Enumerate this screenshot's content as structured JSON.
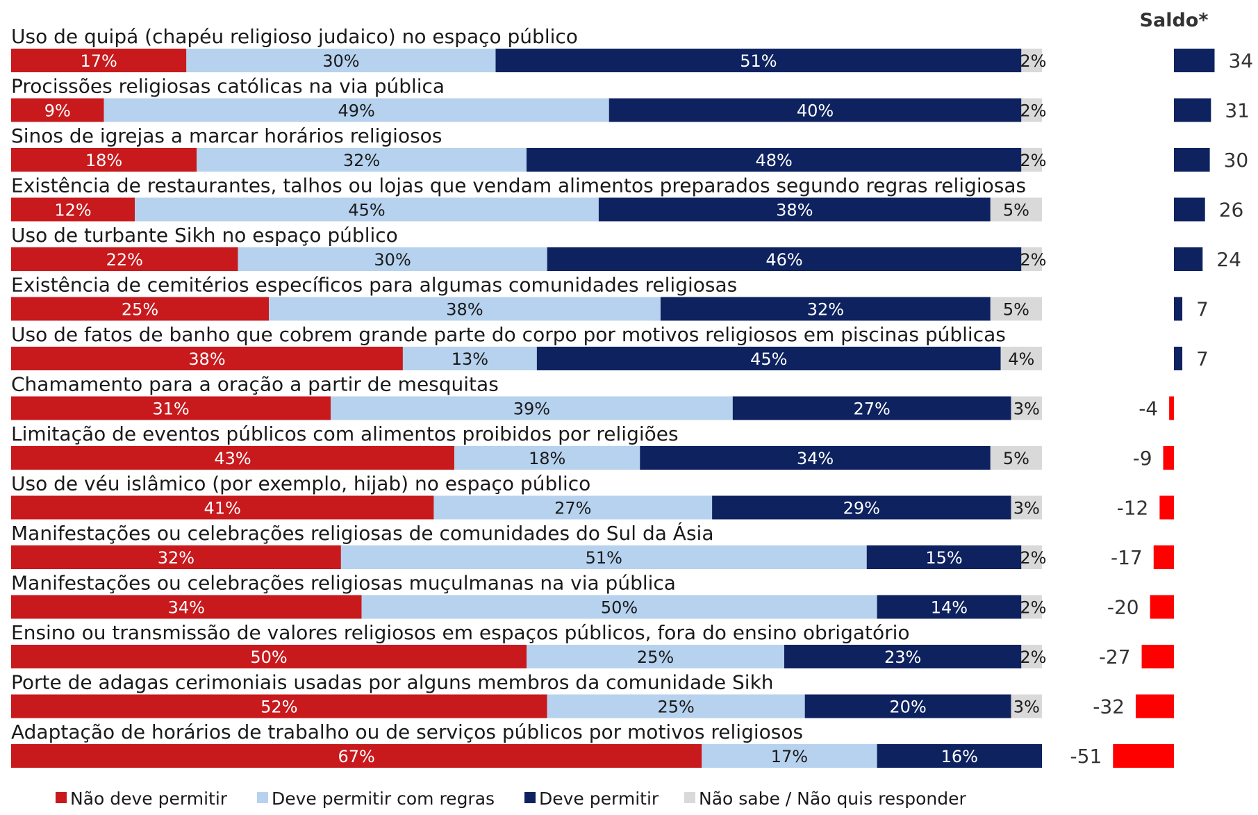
{
  "chart_data": {
    "type": "bar",
    "stacked": true,
    "orientation": "horizontal",
    "saldo_title": "Saldo*",
    "series": [
      {
        "name": "Não deve permitir",
        "color": "#c8191d"
      },
      {
        "name": "Deve permitir com regras",
        "color": "#b6d2ee"
      },
      {
        "name": "Deve permitir",
        "color": "#0e2260"
      },
      {
        "name": "Não sabe / Não quis responder",
        "color": "#d9d9d9"
      }
    ],
    "saldo_colors": {
      "positive": "#0e2260",
      "negative": "#ff0000"
    },
    "categories": [
      {
        "label": "Uso de quipá (chapéu religioso judaico) no espaço público",
        "values": [
          17,
          30,
          51,
          2
        ],
        "value_labels": [
          "17%",
          "30%",
          "51%",
          "2%"
        ],
        "saldo": 34
      },
      {
        "label": "Procissões religiosas católicas na via pública",
        "values": [
          9,
          49,
          40,
          2
        ],
        "value_labels": [
          "9%",
          "49%",
          "40%",
          "2%"
        ],
        "saldo": 31
      },
      {
        "label": "Sinos de igrejas a marcar horários religiosos",
        "values": [
          18,
          32,
          48,
          2
        ],
        "value_labels": [
          "18%",
          "32%",
          "48%",
          "2%"
        ],
        "saldo": 30
      },
      {
        "label": "Existência de restaurantes, talhos ou lojas que vendam alimentos preparados segundo regras religiosas",
        "values": [
          12,
          45,
          38,
          5
        ],
        "value_labels": [
          "12%",
          "45%",
          "38%",
          "5%"
        ],
        "saldo": 26
      },
      {
        "label": "Uso de turbante Sikh no espaço público",
        "values": [
          22,
          30,
          46,
          2
        ],
        "value_labels": [
          "22%",
          "30%",
          "46%",
          "2%"
        ],
        "saldo": 24
      },
      {
        "label": "Existência de cemitérios específicos para algumas comunidades religiosas",
        "values": [
          25,
          38,
          32,
          5
        ],
        "value_labels": [
          "25%",
          "38%",
          "32%",
          "5%"
        ],
        "saldo": 7
      },
      {
        "label": "Uso de fatos de banho que cobrem grande parte do corpo por motivos religiosos em piscinas públicas",
        "values": [
          38,
          13,
          45,
          4
        ],
        "value_labels": [
          "38%",
          "13%",
          "45%",
          "4%"
        ],
        "saldo": 7
      },
      {
        "label": "Chamamento para a oração a partir de mesquitas",
        "values": [
          31,
          39,
          27,
          3
        ],
        "value_labels": [
          "31%",
          "39%",
          "27%",
          "3%"
        ],
        "saldo": -4
      },
      {
        "label": "Limitação de eventos públicos com alimentos proibidos por religiões",
        "values": [
          43,
          18,
          34,
          5
        ],
        "value_labels": [
          "43%",
          "18%",
          "34%",
          "5%"
        ],
        "saldo": -9
      },
      {
        "label": "Uso de véu islâmico (por exemplo, hijab) no espaço público",
        "values": [
          41,
          27,
          29,
          3
        ],
        "value_labels": [
          "41%",
          "27%",
          "29%",
          "3%"
        ],
        "saldo": -12
      },
      {
        "label": "Manifestações ou celebrações religiosas de comunidades do Sul da Ásia",
        "values": [
          32,
          51,
          15,
          2
        ],
        "value_labels": [
          "32%",
          "51%",
          "15%",
          "2%"
        ],
        "saldo": -17
      },
      {
        "label": "Manifestações ou celebrações religiosas muçulmanas na via pública",
        "values": [
          34,
          50,
          14,
          2
        ],
        "value_labels": [
          "34%",
          "50%",
          "14%",
          "2%"
        ],
        "saldo": -20
      },
      {
        "label": "Ensino ou transmissão de valores religiosos em espaços públicos, fora do ensino obrigatório",
        "values": [
          50,
          25,
          23,
          2
        ],
        "value_labels": [
          "50%",
          "25%",
          "23%",
          "2%"
        ],
        "saldo": -27
      },
      {
        "label": "Porte de adagas cerimoniais usadas por alguns membros da comunidade Sikh",
        "values": [
          52,
          25,
          20,
          3
        ],
        "value_labels": [
          "52%",
          "25%",
          "20%",
          "3%"
        ],
        "saldo": -32
      },
      {
        "label": "Adaptação de horários de trabalho ou de serviços públicos por motivos religiosos",
        "values": [
          67,
          17,
          16,
          0
        ],
        "value_labels": [
          "67%",
          "17%",
          "16%",
          ""
        ],
        "saldo": -51
      }
    ],
    "xlim": [
      0,
      100
    ],
    "legend_position": "bottom-left",
    "grid": false
  }
}
